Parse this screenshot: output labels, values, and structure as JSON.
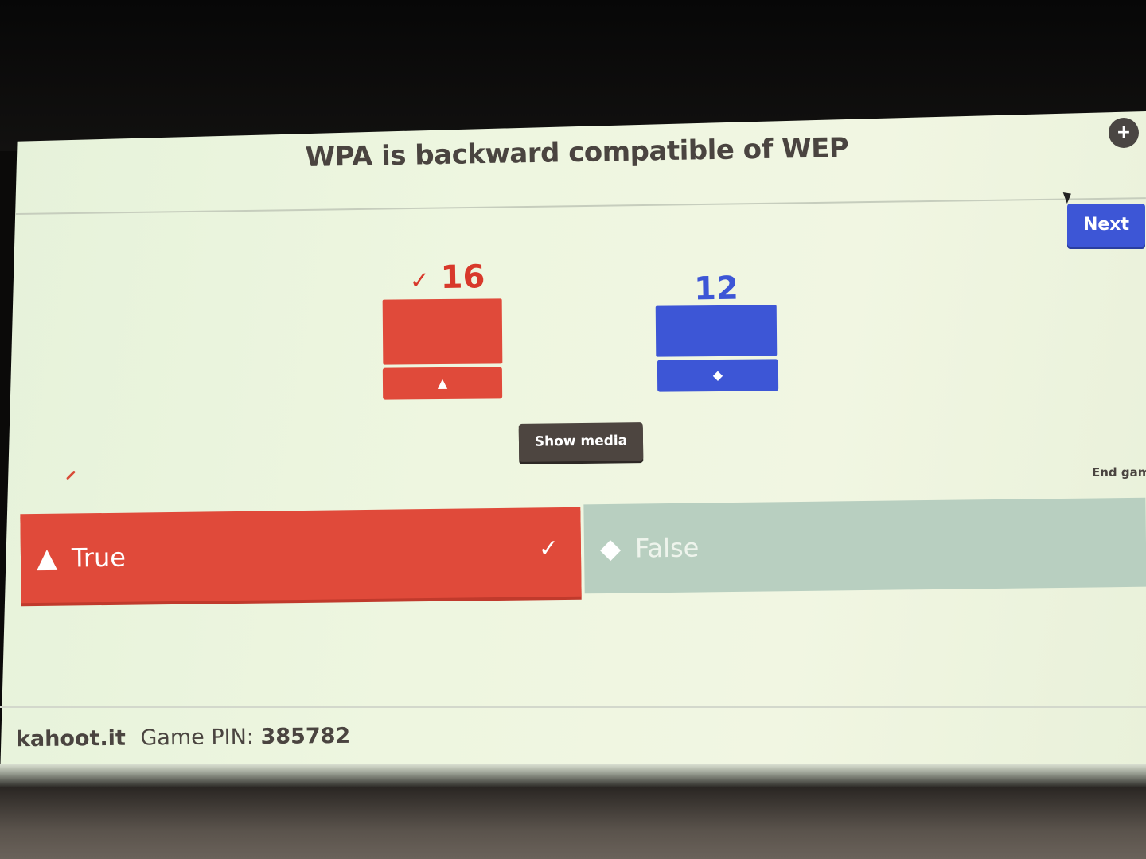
{
  "question": "WPA is backward compatible of WEP",
  "controls": {
    "next_label": "Next",
    "show_media_label": "Show media",
    "end_game_label": "End gam",
    "fullscreen_icon": "collapse-icon"
  },
  "results": [
    {
      "count": "16",
      "correct": true,
      "check": "✓",
      "color": "#e04a3a",
      "shape": "triangle-icon",
      "shape_glyph": "▲"
    },
    {
      "count": "12",
      "correct": false,
      "check": "",
      "color": "#3d56d6",
      "shape": "diamond-icon",
      "shape_glyph": "◆"
    }
  ],
  "answers": [
    {
      "label": "True",
      "shape_glyph": "▲",
      "shape": "triangle-icon",
      "correct": true,
      "check": "✓"
    },
    {
      "label": "False",
      "shape_glyph": "◆",
      "shape": "diamond-icon",
      "correct": false
    }
  ],
  "footer": {
    "brand": "kahoot.it",
    "pin_label": "Game PIN:",
    "pin": "385782"
  }
}
